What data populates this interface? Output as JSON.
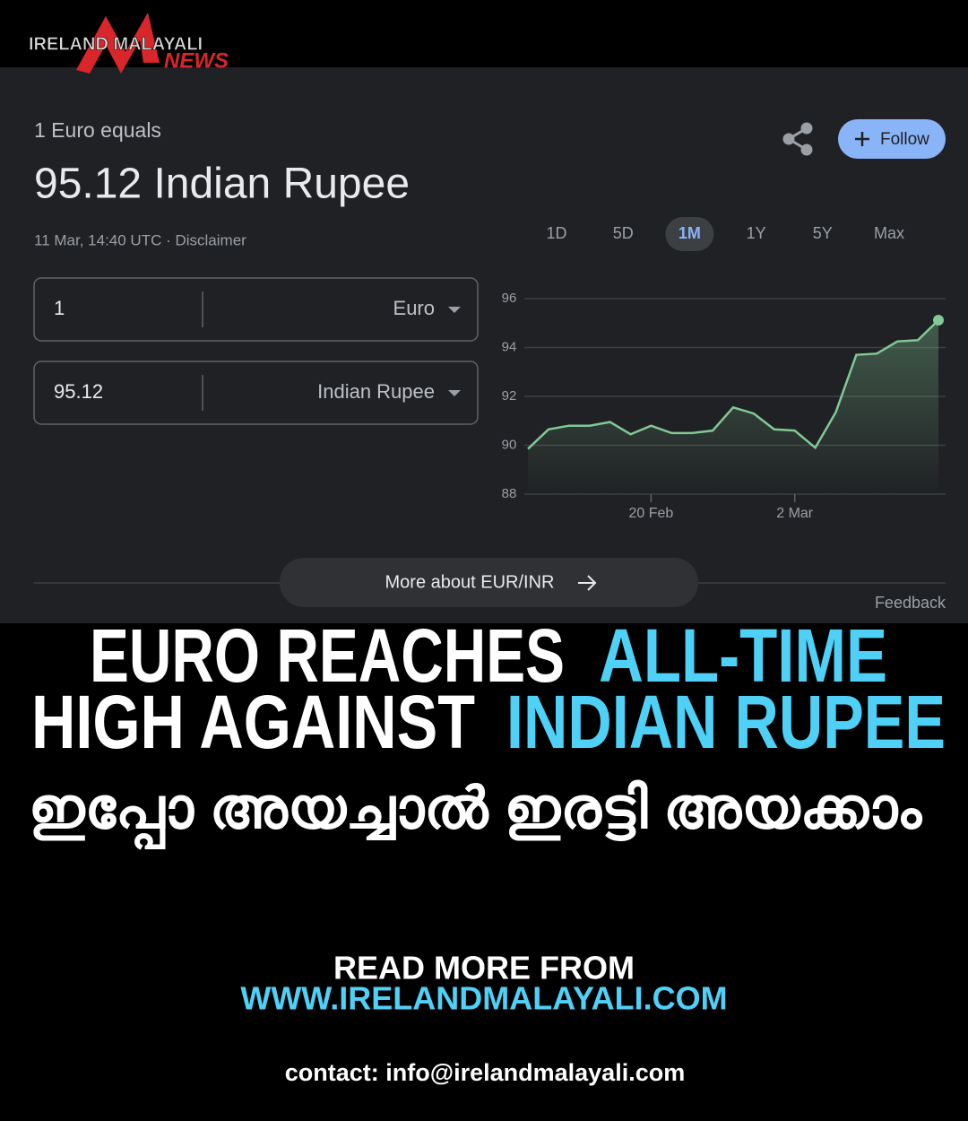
{
  "logo": {
    "line1": "IRELAND MALAYALI",
    "line2": "NEWS"
  },
  "widget": {
    "label": "1 Euro equals",
    "rate": "95.12 Indian Rupee",
    "timestamp": "11 Mar, 14:40 UTC · Disclaimer",
    "follow": "Follow",
    "converter": [
      {
        "amount": "1",
        "currency": "Euro"
      },
      {
        "amount": "95.12",
        "currency": "Indian Rupee"
      }
    ],
    "ranges": [
      "1D",
      "5D",
      "1M",
      "1Y",
      "5Y",
      "Max"
    ],
    "active_range": "1M",
    "more": "More about EUR/INR",
    "feedback": "Feedback"
  },
  "chart_data": {
    "type": "line",
    "categories": [
      null,
      null,
      null,
      null,
      null,
      null,
      "20 Feb",
      null,
      null,
      null,
      null,
      null,
      null,
      "2 Mar",
      null,
      null,
      null,
      null,
      null,
      null,
      null
    ],
    "values": [
      89.85,
      90.65,
      90.8,
      90.8,
      90.95,
      90.45,
      90.8,
      90.5,
      90.5,
      90.6,
      91.55,
      91.3,
      90.65,
      90.6,
      89.9,
      91.35,
      93.7,
      93.75,
      94.25,
      94.3,
      95.12
    ],
    "color": "#81c995",
    "ylim": [
      88,
      96
    ],
    "yticks": [
      88,
      90,
      92,
      94,
      96
    ],
    "grid": true
  },
  "headline": {
    "lines": [
      [
        {
          "text": "EURO REACHES",
          "color": "#ffffff"
        },
        {
          "text": "ALL-TIME",
          "color": "#4fd1f7"
        }
      ],
      [
        {
          "text": "HIGH AGAINST",
          "color": "#ffffff"
        },
        {
          "text": "INDIAN RUPEE",
          "color": "#4fd1f7"
        }
      ]
    ]
  },
  "subheadline": "ഇപ്പോ അയച്ചാൽ ഇരട്ടി അയക്കാം",
  "footer": {
    "read_more": "READ MORE FROM",
    "website": "WWW.IRELANDMALAYALI.COM",
    "contact": "contact: info@irelandmalayali.com"
  }
}
